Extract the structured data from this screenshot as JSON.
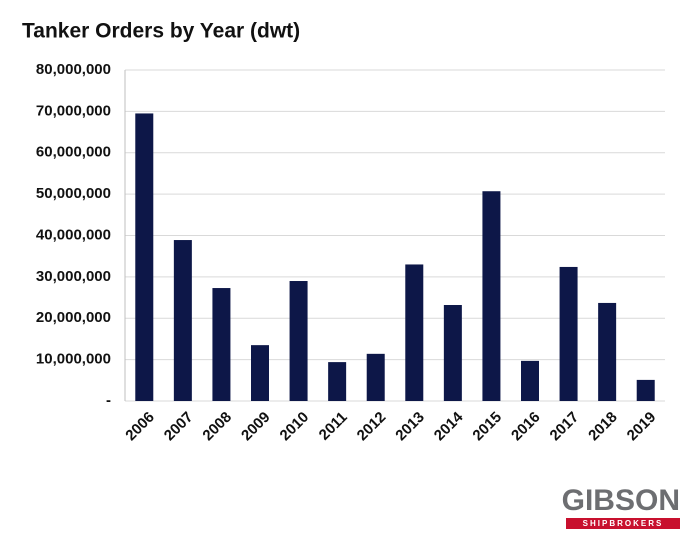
{
  "chart_data": {
    "type": "bar",
    "title": "Tanker Orders by Year (dwt)",
    "categories": [
      "2006",
      "2007",
      "2008",
      "2009",
      "2010",
      "2011",
      "2012",
      "2013",
      "2014",
      "2015",
      "2016",
      "2017",
      "2018",
      "2019"
    ],
    "values": [
      69500000,
      38900000,
      27300000,
      13500000,
      29000000,
      9400000,
      11400000,
      33000000,
      23200000,
      50700000,
      9700000,
      32400000,
      23700000,
      5100000
    ],
    "color": "#0d1748",
    "ylim": [
      0,
      80000000
    ],
    "yticks": [
      {
        "value": 0,
        "label": "-"
      },
      {
        "value": 10000000,
        "label": "10,000,000"
      },
      {
        "value": 20000000,
        "label": "20,000,000"
      },
      {
        "value": 30000000,
        "label": "30,000,000"
      },
      {
        "value": 40000000,
        "label": "40,000,000"
      },
      {
        "value": 50000000,
        "label": "50,000,000"
      },
      {
        "value": 60000000,
        "label": "60,000,000"
      },
      {
        "value": 70000000,
        "label": "70,000,000"
      },
      {
        "value": 80000000,
        "label": "80,000,000"
      }
    ],
    "grid": true
  },
  "logo": {
    "name": "GIBSON",
    "tagline": "SHIPBROKERS"
  }
}
